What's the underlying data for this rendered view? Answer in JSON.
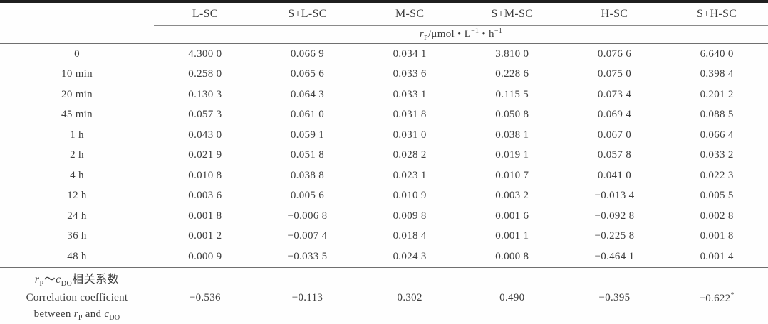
{
  "page": {
    "background": "#fefefe",
    "text_color": "#3d3d3d",
    "rule_color": "#6f6f6f",
    "top_rule_color": "#1f1f1f"
  },
  "table": {
    "columns": [
      "L-SC",
      "S+L-SC",
      "M-SC",
      "S+M-SC",
      "H-SC",
      "S+H-SC"
    ],
    "unit_header_html": "<i>r</i><sub>P</sub>/μmol • L<sup>−1</sup> • h<sup>−1</sup>",
    "rows": [
      {
        "label": "0",
        "values": [
          "4.300 0",
          "0.066 9",
          "0.034 1",
          "3.810 0",
          "0.076 6",
          "6.640 0"
        ]
      },
      {
        "label": "10 min",
        "values": [
          "0.258 0",
          "0.065 6",
          "0.033 6",
          "0.228 6",
          "0.075 0",
          "0.398 4"
        ]
      },
      {
        "label": "20 min",
        "values": [
          "0.130 3",
          "0.064 3",
          "0.033 1",
          "0.115 5",
          "0.073 4",
          "0.201 2"
        ]
      },
      {
        "label": "45 min",
        "values": [
          "0.057 3",
          "0.061 0",
          "0.031 8",
          "0.050 8",
          "0.069 4",
          "0.088 5"
        ]
      },
      {
        "label": "1 h",
        "values": [
          "0.043 0",
          "0.059 1",
          "0.031 0",
          "0.038 1",
          "0.067 0",
          "0.066 4"
        ]
      },
      {
        "label": "2 h",
        "values": [
          "0.021 9",
          "0.051 8",
          "0.028 2",
          "0.019 1",
          "0.057 8",
          "0.033 2"
        ]
      },
      {
        "label": "4 h",
        "values": [
          "0.010 8",
          "0.038 8",
          "0.023 1",
          "0.010 7",
          "0.041 0",
          "0.022 3"
        ]
      },
      {
        "label": "12 h",
        "values": [
          "0.003 6",
          "0.005 6",
          "0.010 9",
          "0.003 2",
          "−0.013 4",
          "0.005 5"
        ]
      },
      {
        "label": "24 h",
        "values": [
          "0.001 8",
          "−0.006 8",
          "0.009 8",
          "0.001 6",
          "−0.092 8",
          "0.002 8"
        ]
      },
      {
        "label": "36 h",
        "values": [
          "0.001 2",
          "−0.007 4",
          "0.018 4",
          "0.001 1",
          "−0.225 8",
          "0.001 8"
        ]
      },
      {
        "label": "48 h",
        "values": [
          "0.000 9",
          "−0.033 5",
          "0.024 3",
          "0.000 8",
          "−0.464 1",
          "0.001 4"
        ]
      }
    ],
    "footer": {
      "label_lines_html": [
        "<i>r</i><sub>P</sub>～<i>c</i><sub>DO</sub>相关系数",
        "Correlation coefficient",
        "between <i>r</i><sub>P</sub> and <i>c</i><sub>DO</sub>"
      ],
      "values_html": [
        "−0.536",
        "−0.113",
        "0.302",
        "0.490",
        "−0.395",
        "−0.622<sup>*</sup>"
      ]
    }
  }
}
